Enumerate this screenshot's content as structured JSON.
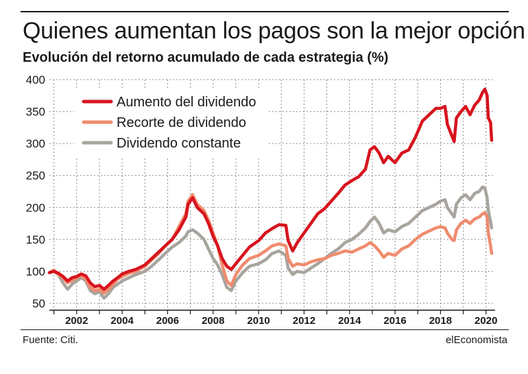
{
  "header": {
    "title": "Quienes aumentan los pagos son la mejor opción",
    "subtitle": "Evolución del retorno acumulado de cada estrategia (%)"
  },
  "footer": {
    "source": "Fuente: Citi.",
    "brand": "elEconomista"
  },
  "colors": {
    "increase": "#d7141e",
    "cut": "#ef8c6e",
    "constant": "#a8a49e",
    "grid": "#8a8a8a",
    "text": "#1a1a1a"
  },
  "chart_data": {
    "type": "line",
    "title": "Quienes aumentan los pagos son la mejor opción",
    "subtitle": "Evolución del retorno acumulado de cada estrategia (%)",
    "xlabel": "",
    "ylabel": "",
    "xlim": [
      2000.8,
      2020.4
    ],
    "ylim": [
      50,
      400
    ],
    "yticks": [
      50,
      100,
      150,
      200,
      250,
      300,
      350,
      400
    ],
    "xticks": [
      "2002",
      "2004",
      "2006",
      "2008",
      "2010",
      "2012",
      "2014",
      "2016",
      "2018",
      "2020"
    ],
    "grid": "dashed",
    "legend_position": "top-left",
    "series": [
      {
        "name": "Aumento del dividendo",
        "color": "#d7141e",
        "points": [
          [
            2000.8,
            98
          ],
          [
            2001.0,
            100
          ],
          [
            2001.2,
            97
          ],
          [
            2001.4,
            92
          ],
          [
            2001.6,
            85
          ],
          [
            2001.8,
            90
          ],
          [
            2002.0,
            92
          ],
          [
            2002.2,
            96
          ],
          [
            2002.4,
            93
          ],
          [
            2002.6,
            82
          ],
          [
            2002.8,
            76
          ],
          [
            2003.0,
            78
          ],
          [
            2003.2,
            72
          ],
          [
            2003.4,
            78
          ],
          [
            2003.6,
            85
          ],
          [
            2003.8,
            90
          ],
          [
            2004.0,
            96
          ],
          [
            2004.3,
            100
          ],
          [
            2004.6,
            103
          ],
          [
            2005.0,
            110
          ],
          [
            2005.3,
            120
          ],
          [
            2005.6,
            130
          ],
          [
            2005.9,
            140
          ],
          [
            2006.2,
            150
          ],
          [
            2006.5,
            165
          ],
          [
            2006.8,
            185
          ],
          [
            2006.9,
            205
          ],
          [
            2007.1,
            215
          ],
          [
            2007.3,
            200
          ],
          [
            2007.6,
            190
          ],
          [
            2007.8,
            175
          ],
          [
            2008.0,
            155
          ],
          [
            2008.2,
            140
          ],
          [
            2008.4,
            120
          ],
          [
            2008.6,
            108
          ],
          [
            2008.8,
            103
          ],
          [
            2009.0,
            112
          ],
          [
            2009.3,
            125
          ],
          [
            2009.6,
            138
          ],
          [
            2010.0,
            148
          ],
          [
            2010.3,
            160
          ],
          [
            2010.6,
            167
          ],
          [
            2010.9,
            173
          ],
          [
            2011.2,
            172
          ],
          [
            2011.3,
            148
          ],
          [
            2011.5,
            132
          ],
          [
            2011.7,
            145
          ],
          [
            2012.0,
            160
          ],
          [
            2012.3,
            175
          ],
          [
            2012.6,
            190
          ],
          [
            2012.9,
            198
          ],
          [
            2013.2,
            210
          ],
          [
            2013.5,
            222
          ],
          [
            2013.8,
            235
          ],
          [
            2014.1,
            242
          ],
          [
            2014.4,
            248
          ],
          [
            2014.7,
            260
          ],
          [
            2014.9,
            290
          ],
          [
            2015.1,
            295
          ],
          [
            2015.3,
            285
          ],
          [
            2015.5,
            270
          ],
          [
            2015.7,
            280
          ],
          [
            2016.0,
            270
          ],
          [
            2016.3,
            285
          ],
          [
            2016.6,
            290
          ],
          [
            2016.9,
            310
          ],
          [
            2017.2,
            335
          ],
          [
            2017.5,
            345
          ],
          [
            2017.8,
            355
          ],
          [
            2018.0,
            355
          ],
          [
            2018.2,
            358
          ],
          [
            2018.3,
            330
          ],
          [
            2018.5,
            312
          ],
          [
            2018.6,
            303
          ],
          [
            2018.7,
            340
          ],
          [
            2018.9,
            350
          ],
          [
            2019.1,
            358
          ],
          [
            2019.3,
            345
          ],
          [
            2019.5,
            360
          ],
          [
            2019.7,
            368
          ],
          [
            2019.85,
            380
          ],
          [
            2019.95,
            385
          ],
          [
            2020.05,
            375
          ],
          [
            2020.1,
            340
          ],
          [
            2020.2,
            333
          ],
          [
            2020.25,
            305
          ]
        ]
      },
      {
        "name": "Recorte de dividendo",
        "color": "#ef8c6e",
        "points": [
          [
            2000.8,
            98
          ],
          [
            2001.0,
            102
          ],
          [
            2001.2,
            95
          ],
          [
            2001.4,
            90
          ],
          [
            2001.6,
            82
          ],
          [
            2001.8,
            86
          ],
          [
            2002.0,
            90
          ],
          [
            2002.2,
            93
          ],
          [
            2002.4,
            88
          ],
          [
            2002.6,
            75
          ],
          [
            2002.8,
            70
          ],
          [
            2003.0,
            72
          ],
          [
            2003.2,
            66
          ],
          [
            2003.4,
            72
          ],
          [
            2003.6,
            80
          ],
          [
            2003.8,
            88
          ],
          [
            2004.0,
            92
          ],
          [
            2004.3,
            97
          ],
          [
            2004.6,
            100
          ],
          [
            2005.0,
            108
          ],
          [
            2005.3,
            118
          ],
          [
            2005.6,
            128
          ],
          [
            2005.9,
            140
          ],
          [
            2006.2,
            150
          ],
          [
            2006.5,
            170
          ],
          [
            2006.8,
            190
          ],
          [
            2006.9,
            210
          ],
          [
            2007.1,
            220
          ],
          [
            2007.3,
            205
          ],
          [
            2007.6,
            195
          ],
          [
            2007.8,
            180
          ],
          [
            2008.0,
            160
          ],
          [
            2008.2,
            140
          ],
          [
            2008.4,
            110
          ],
          [
            2008.6,
            85
          ],
          [
            2008.8,
            78
          ],
          [
            2009.0,
            95
          ],
          [
            2009.3,
            110
          ],
          [
            2009.6,
            120
          ],
          [
            2010.0,
            125
          ],
          [
            2010.3,
            132
          ],
          [
            2010.6,
            140
          ],
          [
            2010.9,
            143
          ],
          [
            2011.2,
            140
          ],
          [
            2011.3,
            120
          ],
          [
            2011.5,
            108
          ],
          [
            2011.7,
            112
          ],
          [
            2012.0,
            110
          ],
          [
            2012.3,
            115
          ],
          [
            2012.6,
            118
          ],
          [
            2012.9,
            120
          ],
          [
            2013.2,
            125
          ],
          [
            2013.5,
            128
          ],
          [
            2013.8,
            132
          ],
          [
            2014.1,
            130
          ],
          [
            2014.4,
            135
          ],
          [
            2014.7,
            140
          ],
          [
            2014.9,
            145
          ],
          [
            2015.1,
            140
          ],
          [
            2015.3,
            132
          ],
          [
            2015.5,
            122
          ],
          [
            2015.7,
            128
          ],
          [
            2016.0,
            125
          ],
          [
            2016.3,
            135
          ],
          [
            2016.6,
            140
          ],
          [
            2016.9,
            150
          ],
          [
            2017.2,
            158
          ],
          [
            2017.5,
            163
          ],
          [
            2017.8,
            168
          ],
          [
            2018.0,
            170
          ],
          [
            2018.2,
            168
          ],
          [
            2018.3,
            160
          ],
          [
            2018.5,
            150
          ],
          [
            2018.6,
            148
          ],
          [
            2018.7,
            165
          ],
          [
            2018.9,
            175
          ],
          [
            2019.1,
            180
          ],
          [
            2019.3,
            175
          ],
          [
            2019.5,
            182
          ],
          [
            2019.7,
            185
          ],
          [
            2019.85,
            190
          ],
          [
            2019.95,
            192
          ],
          [
            2020.05,
            185
          ],
          [
            2020.1,
            160
          ],
          [
            2020.2,
            140
          ],
          [
            2020.25,
            128
          ]
        ]
      },
      {
        "name": "Dividendo constante",
        "color": "#a8a49e",
        "points": [
          [
            2000.8,
            98
          ],
          [
            2001.0,
            100
          ],
          [
            2001.2,
            95
          ],
          [
            2001.4,
            82
          ],
          [
            2001.6,
            72
          ],
          [
            2001.8,
            80
          ],
          [
            2002.0,
            85
          ],
          [
            2002.2,
            90
          ],
          [
            2002.4,
            85
          ],
          [
            2002.6,
            70
          ],
          [
            2002.8,
            65
          ],
          [
            2003.0,
            68
          ],
          [
            2003.2,
            58
          ],
          [
            2003.4,
            65
          ],
          [
            2003.6,
            75
          ],
          [
            2003.8,
            80
          ],
          [
            2004.0,
            85
          ],
          [
            2004.3,
            90
          ],
          [
            2004.6,
            95
          ],
          [
            2005.0,
            100
          ],
          [
            2005.3,
            108
          ],
          [
            2005.6,
            118
          ],
          [
            2005.9,
            128
          ],
          [
            2006.2,
            138
          ],
          [
            2006.5,
            145
          ],
          [
            2006.8,
            155
          ],
          [
            2006.9,
            162
          ],
          [
            2007.1,
            165
          ],
          [
            2007.3,
            160
          ],
          [
            2007.6,
            150
          ],
          [
            2007.8,
            135
          ],
          [
            2008.0,
            120
          ],
          [
            2008.2,
            110
          ],
          [
            2008.4,
            95
          ],
          [
            2008.6,
            75
          ],
          [
            2008.8,
            70
          ],
          [
            2009.0,
            85
          ],
          [
            2009.3,
            98
          ],
          [
            2009.6,
            108
          ],
          [
            2010.0,
            112
          ],
          [
            2010.3,
            118
          ],
          [
            2010.6,
            128
          ],
          [
            2010.9,
            132
          ],
          [
            2011.2,
            125
          ],
          [
            2011.3,
            105
          ],
          [
            2011.5,
            95
          ],
          [
            2011.7,
            100
          ],
          [
            2012.0,
            98
          ],
          [
            2012.3,
            105
          ],
          [
            2012.6,
            112
          ],
          [
            2012.9,
            120
          ],
          [
            2013.2,
            128
          ],
          [
            2013.5,
            135
          ],
          [
            2013.8,
            145
          ],
          [
            2014.1,
            150
          ],
          [
            2014.4,
            158
          ],
          [
            2014.7,
            168
          ],
          [
            2014.9,
            178
          ],
          [
            2015.1,
            185
          ],
          [
            2015.3,
            175
          ],
          [
            2015.5,
            160
          ],
          [
            2015.7,
            165
          ],
          [
            2016.0,
            162
          ],
          [
            2016.3,
            170
          ],
          [
            2016.6,
            175
          ],
          [
            2016.9,
            185
          ],
          [
            2017.2,
            195
          ],
          [
            2017.5,
            200
          ],
          [
            2017.8,
            205
          ],
          [
            2018.0,
            210
          ],
          [
            2018.2,
            212
          ],
          [
            2018.3,
            200
          ],
          [
            2018.5,
            190
          ],
          [
            2018.6,
            185
          ],
          [
            2018.7,
            205
          ],
          [
            2018.9,
            215
          ],
          [
            2019.1,
            220
          ],
          [
            2019.3,
            212
          ],
          [
            2019.5,
            222
          ],
          [
            2019.7,
            225
          ],
          [
            2019.85,
            232
          ],
          [
            2019.95,
            230
          ],
          [
            2020.05,
            215
          ],
          [
            2020.1,
            195
          ],
          [
            2020.2,
            178
          ],
          [
            2020.25,
            168
          ]
        ]
      }
    ]
  }
}
